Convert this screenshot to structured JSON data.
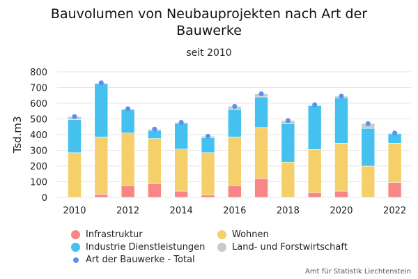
{
  "title": "Bauvolumen von Neubauprojekten nach Art der Bauwerke",
  "subtitle": "seit 2010",
  "credit": "Amt für Statistik Liechtenstein",
  "chart_data": {
    "type": "bar",
    "stacked": true,
    "ylabel": "Tsd.m3",
    "ylim": [
      0,
      800
    ],
    "yticks": [
      0,
      100,
      200,
      300,
      400,
      500,
      600,
      700,
      800
    ],
    "xticks": [
      "2010",
      "2012",
      "2014",
      "2016",
      "2018",
      "2020",
      "2022"
    ],
    "grid": true,
    "categories": [
      "2010",
      "2011",
      "2012",
      "2013",
      "2014",
      "2015",
      "2016",
      "2017",
      "2018",
      "2019",
      "2020",
      "2021",
      "2022"
    ],
    "series": [
      {
        "name": "Infrastruktur",
        "color": "#f88686",
        "values": [
          0,
          20,
          75,
          88,
          40,
          15,
          75,
          120,
          0,
          30,
          40,
          0,
          95
        ]
      },
      {
        "name": "Wohnen",
        "color": "#f5d06a",
        "values": [
          285,
          365,
          335,
          287,
          268,
          270,
          310,
          325,
          225,
          275,
          305,
          200,
          250
        ]
      },
      {
        "name": "Industrie Dienstleistungen",
        "color": "#44c1ef",
        "values": [
          210,
          340,
          150,
          52,
          165,
          95,
          175,
          195,
          245,
          280,
          290,
          240,
          60
        ]
      },
      {
        "name": "Land- und Forstwirtschaft",
        "color": "#c9c9c9",
        "values": [
          20,
          5,
          5,
          8,
          5,
          10,
          20,
          20,
          20,
          5,
          10,
          30,
          5
        ]
      }
    ],
    "total": {
      "name": "Art der Bauwerke - Total",
      "color": "#5b8ff0",
      "values": [
        515,
        730,
        565,
        435,
        478,
        390,
        580,
        660,
        490,
        590,
        645,
        470,
        410
      ]
    }
  }
}
